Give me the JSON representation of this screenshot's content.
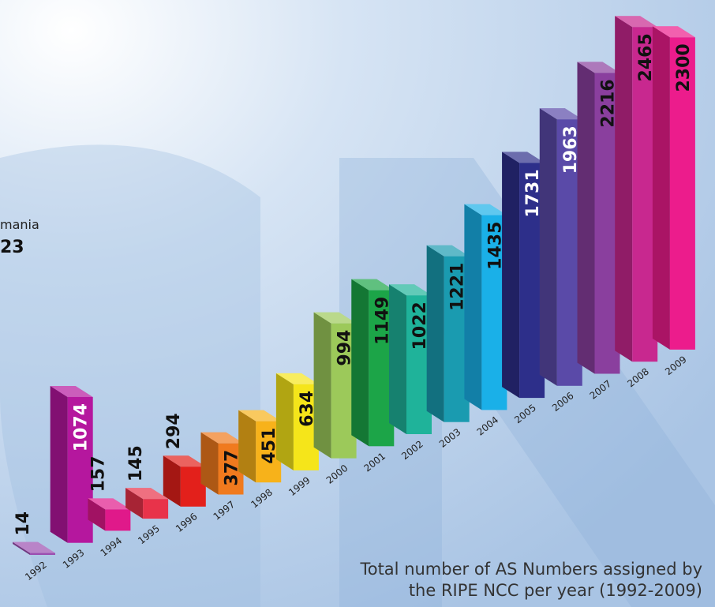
{
  "chart_data": {
    "type": "bar3d",
    "title": [
      "Total number of AS Numbers assigned by",
      "the RIPE NCC per year (1992-2009)"
    ],
    "annotations": [
      "mania",
      "23"
    ],
    "categories": [
      "1992",
      "1993",
      "1994",
      "1995",
      "1996",
      "1997",
      "1998",
      "1999",
      "2000",
      "2001",
      "2002",
      "2003",
      "2004",
      "2005",
      "2006",
      "2007",
      "2008",
      "2009"
    ],
    "values": [
      14,
      1074,
      157,
      145,
      294,
      377,
      451,
      634,
      994,
      1149,
      1022,
      1221,
      1435,
      1731,
      1963,
      2216,
      2465,
      2300
    ],
    "colors": [
      "#9b4fb0",
      "#b5179e",
      "#e0198a",
      "#e8334a",
      "#e3201b",
      "#f07a1e",
      "#f7b21a",
      "#f5e51a",
      "#9cc95a",
      "#1ca548",
      "#1fb39a",
      "#1a9bb0",
      "#1ab0e8",
      "#2d2f8a",
      "#5a4aa8",
      "#8a3f9e",
      "#c8288f",
      "#ec1c8c"
    ]
  }
}
